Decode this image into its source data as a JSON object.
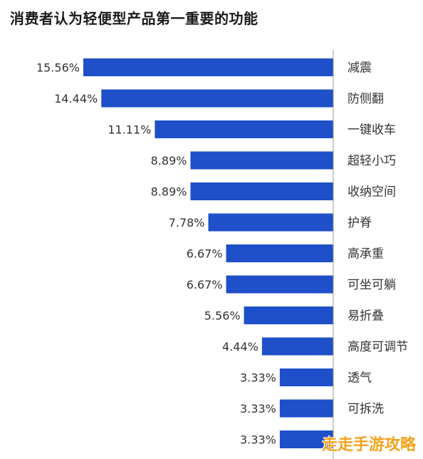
{
  "title": "消费者认为轻便型产品第一重要的功能",
  "watermark": "走走手游攻略",
  "chart_data": {
    "type": "bar",
    "orientation": "horizontal",
    "bar_color": "#1f4fc9",
    "categories": [
      "减震",
      "防侧翻",
      "一键收车",
      "超轻小巧",
      "收纳空间",
      "护脊",
      "高承重",
      "可坐可躺",
      "易折叠",
      "高度可调节",
      "透气",
      "可拆洗",
      ""
    ],
    "values": [
      15.56,
      14.44,
      11.11,
      8.89,
      8.89,
      7.78,
      6.67,
      6.67,
      5.56,
      4.44,
      3.33,
      3.33,
      3.33
    ],
    "value_labels": [
      "15.56%",
      "14.44%",
      "11.11%",
      "8.89%",
      "8.89%",
      "7.78%",
      "6.67%",
      "6.67%",
      "5.56%",
      "4.44%",
      "3.33%",
      "3.33%",
      "3.33%"
    ],
    "xlim": [
      0,
      15.56
    ],
    "bars_extend_left_from_axis": true,
    "grid": false,
    "legend": false
  }
}
